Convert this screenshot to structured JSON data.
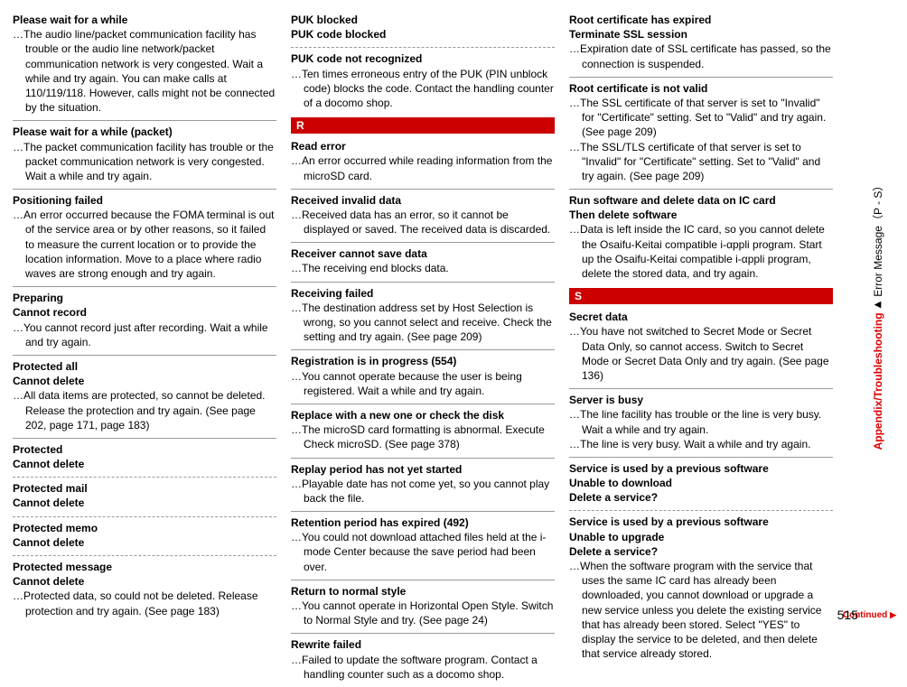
{
  "page_number": "515",
  "side_label": {
    "section": "Appendix/Troubleshooting",
    "arrow": "▶",
    "sub": "Error Message（P - S）"
  },
  "continued_label": "Continued",
  "continued_arrow": "▶",
  "letter_R": "R",
  "letter_S": "S",
  "col1": [
    {
      "titles": [
        "Please wait for a while"
      ],
      "descs": [
        "The audio line/packet communication facility has trouble or the audio line network/packet communication network is very congested. Wait a while and try again. You can make calls at 110/119/118. However, calls might not be connected by the situation."
      ],
      "top": true
    },
    {
      "titles": [
        "Please wait for a while (packet)"
      ],
      "descs": [
        "The packet communication facility has trouble or the packet communication network is very congested. Wait a while and try again."
      ]
    },
    {
      "titles": [
        "Positioning failed"
      ],
      "descs": [
        "An error occurred because the FOMA terminal is out of the service area or by other reasons, so it failed to measure the current location or to provide the location information. Move to a place where radio waves are strong enough and try again."
      ]
    },
    {
      "titles": [
        "Preparing",
        "Cannot record"
      ],
      "descs": [
        "You cannot record just after recording. Wait a while and try again."
      ]
    },
    {
      "titles": [
        "Protected all",
        "Cannot delete"
      ],
      "descs": [
        "All data items are protected, so cannot be deleted. Release the protection and try again. (See page 202, page 171, page 183)"
      ]
    },
    {
      "titles": [
        "Protected",
        "Cannot delete"
      ],
      "descs": []
    },
    {
      "titles": [
        "Protected mail",
        "Cannot delete"
      ],
      "descs": [],
      "dashed": true
    },
    {
      "titles": [
        "Protected memo",
        "Cannot delete"
      ],
      "descs": [],
      "dashed": true
    },
    {
      "titles": [
        "Protected message",
        "Cannot delete"
      ],
      "descs": [
        "Protected data, so could not be deleted. Release protection and try again. (See page 183)"
      ],
      "dashed": true
    }
  ],
  "col2": [
    {
      "titles": [
        "PUK blocked",
        "PUK code blocked"
      ],
      "descs": [],
      "top": true
    },
    {
      "titles": [
        "PUK code not recognized"
      ],
      "descs": [
        "Ten times erroneous entry of the PUK (PIN unblock code) blocks the code. Contact the handling counter of a docomo shop."
      ],
      "dashed": true
    },
    {
      "letter": "R"
    },
    {
      "titles": [
        "Read error"
      ],
      "descs": [
        "An error occurred while reading information from the microSD card."
      ],
      "noline": true
    },
    {
      "titles": [
        "Received invalid data"
      ],
      "descs": [
        "Received data has an error, so it cannot be displayed or saved. The received data is discarded."
      ]
    },
    {
      "titles": [
        "Receiver cannot save data"
      ],
      "descs": [
        "The receiving end blocks data."
      ]
    },
    {
      "titles": [
        "Receiving failed"
      ],
      "descs": [
        "The destination address set by Host Selection is wrong, so you cannot select and receive. Check the setting and try again. (See page 209)"
      ]
    },
    {
      "titles": [
        "Registration is in progress (554)"
      ],
      "descs": [
        "You cannot operate because the user is being registered. Wait a while and try again."
      ]
    },
    {
      "titles": [
        "Replace with a new one or check the disk"
      ],
      "descs": [
        "The microSD card formatting is abnormal. Execute Check microSD. (See page 378)"
      ]
    },
    {
      "titles": [
        "Replay period has not yet started"
      ],
      "descs": [
        "Playable date has not come yet, so you cannot play back the file."
      ]
    },
    {
      "titles": [
        "Retention period has expired (492)"
      ],
      "descs": [
        "You could not download attached files held at the i-mode Center because the save period had been over."
      ]
    },
    {
      "titles": [
        "Return to normal style"
      ],
      "descs": [
        "You cannot operate in Horizontal Open Style. Switch to Normal Style and try. (See page 24)"
      ]
    },
    {
      "titles": [
        "Rewrite failed"
      ],
      "descs": [
        "Failed to update the software program. Contact a handling counter such as a docomo shop."
      ]
    }
  ],
  "col3": [
    {
      "titles": [
        "Root certificate has expired",
        "Terminate SSL session"
      ],
      "descs": [
        "Expiration date of SSL certificate has passed, so the connection is suspended."
      ],
      "top": true
    },
    {
      "titles": [
        "Root certificate is not valid"
      ],
      "descs": [
        "The SSL certificate of that server is set to \"Invalid\" for \"Certificate\" setting. Set to \"Valid\" and try again. (See page 209)",
        "The SSL/TLS certificate of that server is set to \"Invalid\" for \"Certificate\" setting. Set to \"Valid\" and try again. (See page 209)"
      ]
    },
    {
      "titles": [
        "Run software and delete data on IC card",
        "Then delete software"
      ],
      "descs": [
        "Data is left inside the IC card, so you cannot delete the Osaifu-Keitai compatible i-αppli program. Start up the Osaifu-Keitai compatible i-αppli program, delete the stored data, and try again."
      ]
    },
    {
      "letter": "S"
    },
    {
      "titles": [
        "Secret data"
      ],
      "descs": [
        "You have not switched to Secret Mode or Secret Data Only, so cannot access. Switch to Secret Mode or Secret Data Only and try again. (See page 136)"
      ],
      "noline": true
    },
    {
      "titles": [
        "Server is busy"
      ],
      "descs": [
        "The line facility has trouble or the line is very busy. Wait a while and try again.",
        "The line is very busy. Wait a while and try again."
      ]
    },
    {
      "titles": [
        "Service is used by a previous software",
        "Unable to download",
        "Delete a service?"
      ],
      "descs": []
    },
    {
      "titles": [
        "Service is used by a previous software",
        "Unable to upgrade",
        "Delete a service?"
      ],
      "descs": [
        "When the software program with the service that uses the same IC card has already been downloaded, you cannot download or upgrade a new service unless you delete the existing service that has already been stored. Select \"YES\" to display the service to be deleted, and then delete that service already stored."
      ],
      "dashed": true
    }
  ]
}
